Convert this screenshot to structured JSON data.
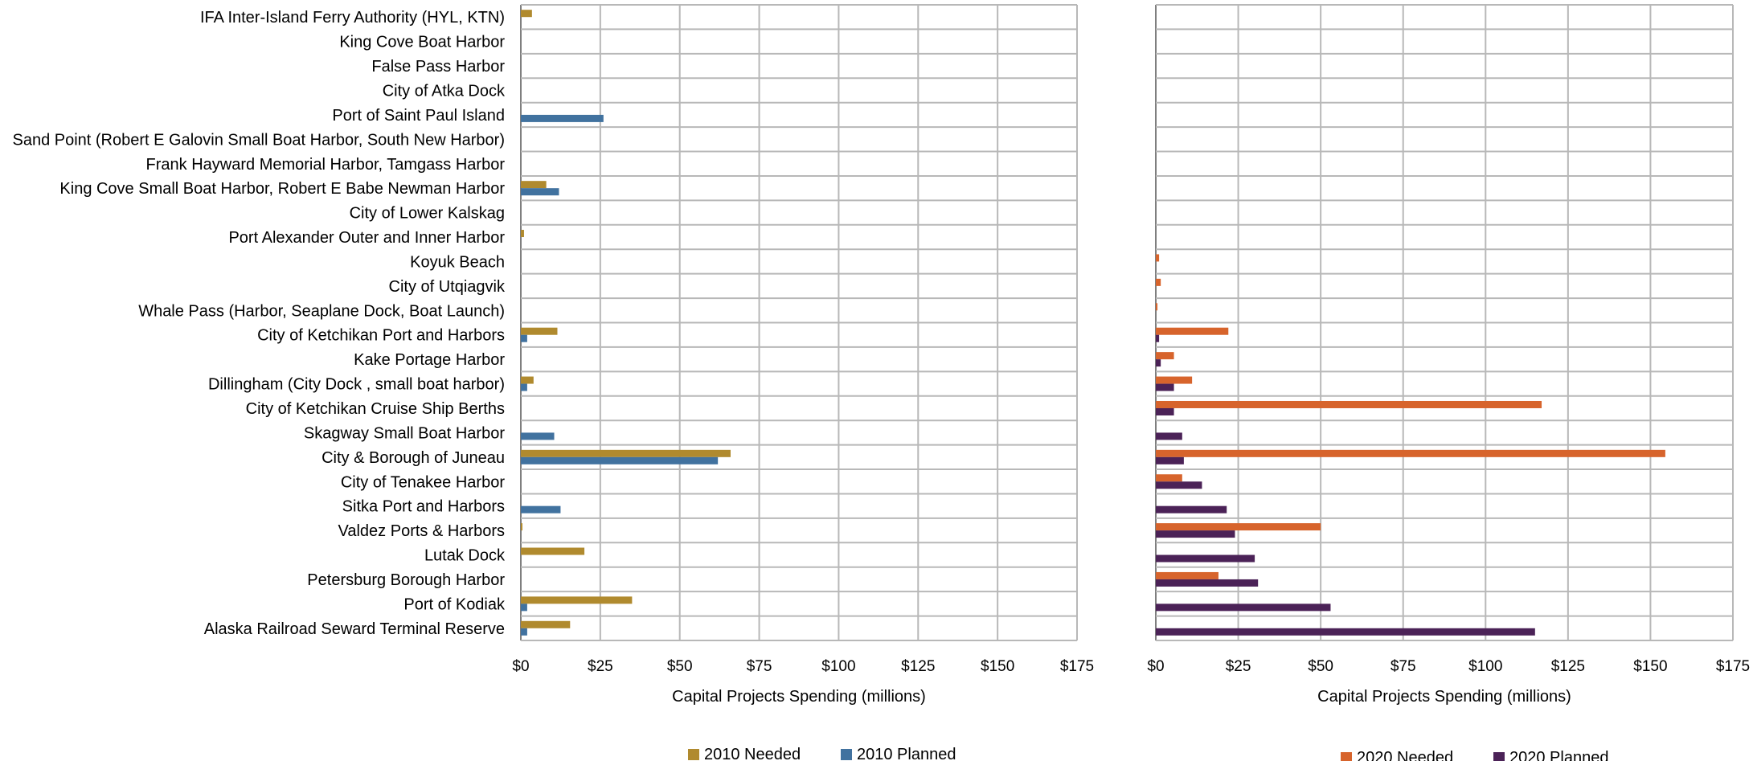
{
  "chart_data": [
    {
      "type": "bar",
      "orientation": "horizontal",
      "categories": [
        "IFA Inter-Island Ferry Authority (HYL, KTN)",
        "King Cove Boat Harbor",
        "False Pass Harbor",
        "City of Atka Dock",
        "Port of Saint Paul Island",
        "Sand Point (Robert E Galovin Small Boat Harbor, South New Harbor)",
        "Frank Hayward Memorial Harbor, Tamgass Harbor",
        "King Cove Small Boat Harbor, Robert E Babe Newman Harbor",
        "City of Lower Kalskag",
        "Port Alexander Outer and Inner Harbor",
        "Koyuk Beach",
        "City of Utqiagvik",
        "Whale Pass (Harbor, Seaplane Dock, Boat Launch)",
        "City of Ketchikan Port and Harbors",
        "Kake Portage Harbor",
        "Dillingham (City Dock , small boat harbor)",
        "City of Ketchikan Cruise Ship Berths",
        "Skagway Small Boat Harbor",
        "City & Borough of Juneau",
        "City of Tenakee Harbor",
        "Sitka Port and Harbors",
        "Valdez Ports & Harbors",
        "Lutak Dock",
        "Petersburg Borough Harbor",
        "Port of Kodiak",
        "Alaska Railroad Seward Terminal Reserve"
      ],
      "series": [
        {
          "name": "2010 Needed",
          "color": "#b08a2e",
          "values": [
            3.5,
            0,
            0,
            0,
            0,
            0,
            0,
            8,
            0,
            1,
            0,
            0,
            0,
            11.5,
            0,
            4,
            0,
            0,
            66,
            0,
            0,
            0.5,
            20,
            0,
            35,
            15.5
          ]
        },
        {
          "name": "2010 Planned",
          "color": "#41729f",
          "values": [
            0,
            0,
            0,
            0,
            26,
            0,
            0,
            12,
            0,
            0,
            0,
            0,
            0,
            2,
            0,
            2,
            0,
            10.5,
            62,
            0,
            12.5,
            0,
            0,
            0,
            2,
            2
          ]
        }
      ],
      "xlabel": "Capital Projects Spending (millions)",
      "xlim": [
        0,
        175
      ],
      "xticks": [
        "$0",
        "$25",
        "$50",
        "$75",
        "$100",
        "$125",
        "$150",
        "$175"
      ],
      "grid": true,
      "legend_position": "bottom"
    },
    {
      "type": "bar",
      "orientation": "horizontal",
      "categories_shared_with_left": true,
      "series": [
        {
          "name": "2020 Needed",
          "color": "#d7642c",
          "values": [
            0,
            0,
            0,
            0,
            0,
            0,
            0,
            0,
            0,
            0,
            1,
            1.5,
            0.5,
            22,
            5.5,
            11,
            117,
            0,
            154.5,
            8,
            0,
            50,
            0,
            19,
            0,
            0
          ]
        },
        {
          "name": "2020 Planned",
          "color": "#4b2257",
          "values": [
            0,
            0,
            0,
            0,
            0,
            0,
            0,
            0,
            0,
            0,
            0,
            0,
            0,
            1,
            1.5,
            5.5,
            5.5,
            8,
            8.5,
            14,
            21.5,
            24,
            30,
            31,
            53,
            115
          ]
        }
      ],
      "xlabel": "Capital Projects Spending (millions)",
      "xlim": [
        0,
        175
      ],
      "xticks": [
        "$0",
        "$25",
        "$50",
        "$75",
        "$100",
        "$125",
        "$150",
        "$175"
      ],
      "grid": true,
      "legend_position": "bottom"
    }
  ]
}
